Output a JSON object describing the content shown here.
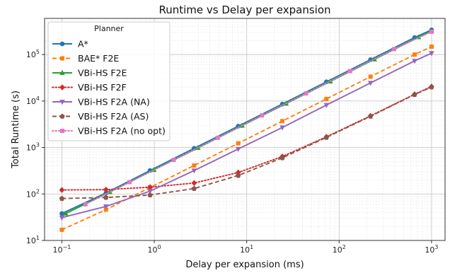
{
  "chart_data": {
    "type": "line",
    "title": "Runtime vs Delay per expansion",
    "xlabel": "Delay per expansion (ms)",
    "ylabel": "Total Runtime (s)",
    "x_scale": "log",
    "y_scale": "log",
    "xlim": [
      0.065,
      1400
    ],
    "ylim": [
      10,
      600000
    ],
    "x_ticks": [
      {
        "v": 0.1,
        "base": "10",
        "exp": "−1"
      },
      {
        "v": 1,
        "base": "10",
        "exp": "0"
      },
      {
        "v": 10,
        "base": "10",
        "exp": "1"
      },
      {
        "v": 100,
        "base": "10",
        "exp": "2"
      },
      {
        "v": 1000,
        "base": "10",
        "exp": "3"
      }
    ],
    "y_ticks": [
      {
        "v": 10,
        "base": "10",
        "exp": "1"
      },
      {
        "v": 100,
        "base": "10",
        "exp": "2"
      },
      {
        "v": 1000,
        "base": "10",
        "exp": "3"
      },
      {
        "v": 10000,
        "base": "10",
        "exp": "4"
      },
      {
        "v": 100000,
        "base": "10",
        "exp": "5"
      }
    ],
    "grid": true,
    "legend": {
      "title": "Planner",
      "position": "top-left"
    },
    "series": [
      {
        "name": "A*",
        "color": "#1f77b4",
        "dash": "solid",
        "marker": "circle",
        "x": [
          0.1,
          0.3,
          0.9,
          2.7,
          8.1,
          24.3,
          72.9,
          218.7,
          656.1,
          1000
        ],
        "y": [
          38,
          105,
          320,
          960,
          2880,
          8600,
          25900,
          77700,
          233000,
          340000
        ]
      },
      {
        "name": "BAE* F2E",
        "color": "#ff7f0e",
        "dash": "dashed",
        "marker": "square",
        "x": [
          0.1,
          0.3,
          0.9,
          2.7,
          8.1,
          24.3,
          72.9,
          218.7,
          656.1,
          1000
        ],
        "y": [
          17,
          46,
          138,
          410,
          1230,
          3700,
          11100,
          33500,
          100000,
          148000
        ]
      },
      {
        "name": "VBi-HS F2E",
        "color": "#2ca02c",
        "dash": "solid",
        "marker": "triangle",
        "x": [
          0.11,
          0.33,
          0.99,
          2.97,
          8.91,
          26.7,
          80.2,
          240.6,
          721.7,
          1000
        ],
        "y": [
          38,
          110,
          330,
          980,
          2950,
          8800,
          26400,
          79000,
          236000,
          320000
        ]
      },
      {
        "name": "VBi-HS F2F",
        "color": "#d62728",
        "dash": "dotted",
        "marker": "diamond",
        "x": [
          0.1,
          0.3,
          0.9,
          2.7,
          8.1,
          24.3,
          72.9,
          218.7,
          656.1,
          1000
        ],
        "y": [
          122,
          124,
          140,
          172,
          290,
          640,
          1700,
          4800,
          14000,
          20500
        ]
      },
      {
        "name": "VBi-HS F2A (NA)",
        "color": "#9467bd",
        "dash": "solid",
        "marker": "triangle-down",
        "x": [
          0.1,
          0.3,
          0.9,
          2.7,
          8.1,
          24.3,
          72.9,
          218.7,
          656.1,
          1000
        ],
        "y": [
          31,
          54,
          115,
          320,
          930,
          2700,
          8200,
          24500,
          73000,
          107000
        ]
      },
      {
        "name": "VBi-HS F2A (AS)",
        "color": "#8c564b",
        "dash": "dashed",
        "marker": "pentagon",
        "x": [
          0.1,
          0.3,
          0.9,
          2.7,
          8.1,
          24.3,
          72.9,
          218.7,
          656.1,
          1000
        ],
        "y": [
          80,
          84,
          95,
          131,
          250,
          600,
          1650,
          4700,
          13800,
          20000
        ]
      },
      {
        "name": "VBi-HS F2A (no opt)",
        "color": "#e377c2",
        "dash": "dotted",
        "marker": "square",
        "x": [
          0.18,
          0.54,
          1.62,
          4.86,
          14.6,
          43.7,
          131.2,
          393.7,
          1000
        ],
        "y": [
          60,
          180,
          540,
          1620,
          4900,
          14600,
          44000,
          131000,
          310000
        ]
      }
    ]
  }
}
